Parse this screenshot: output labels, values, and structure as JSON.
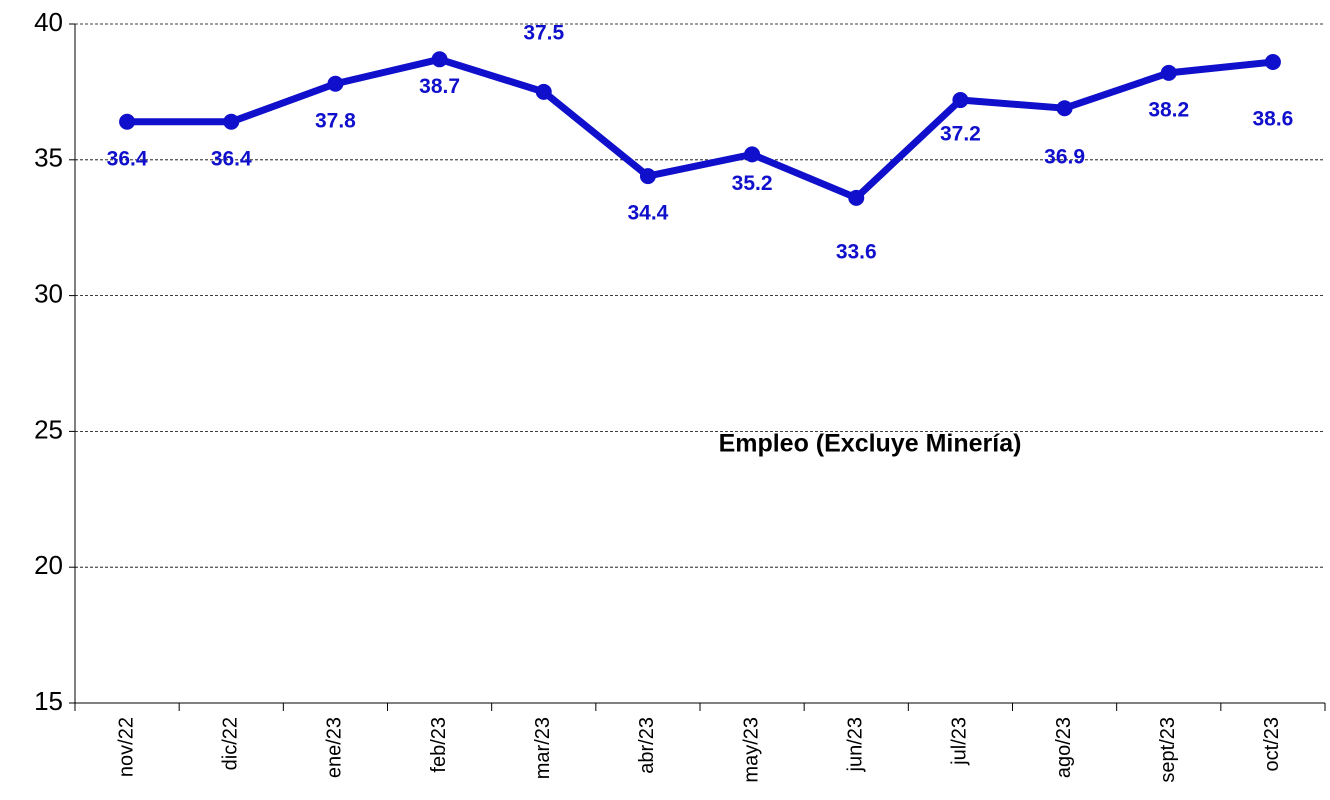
{
  "chart_data": {
    "type": "line",
    "annotation": "Empleo (Excluye Minería)",
    "categories": [
      "nov/22",
      "dic/22",
      "ene/23",
      "feb/23",
      "mar/23",
      "abr/23",
      "may/23",
      "jun/23",
      "jul/23",
      "ago/23",
      "sept/23",
      "oct/23"
    ],
    "series": [
      {
        "name": "Empleo (Excluye Minería)",
        "color": "#1010cc",
        "values": [
          36.4,
          36.4,
          37.8,
          38.7,
          37.5,
          34.4,
          35.2,
          33.6,
          37.2,
          36.9,
          38.2,
          38.6
        ]
      }
    ],
    "ylim": [
      15,
      40
    ],
    "yticks": [
      15,
      20,
      25,
      30,
      35,
      40
    ],
    "grid": true
  }
}
